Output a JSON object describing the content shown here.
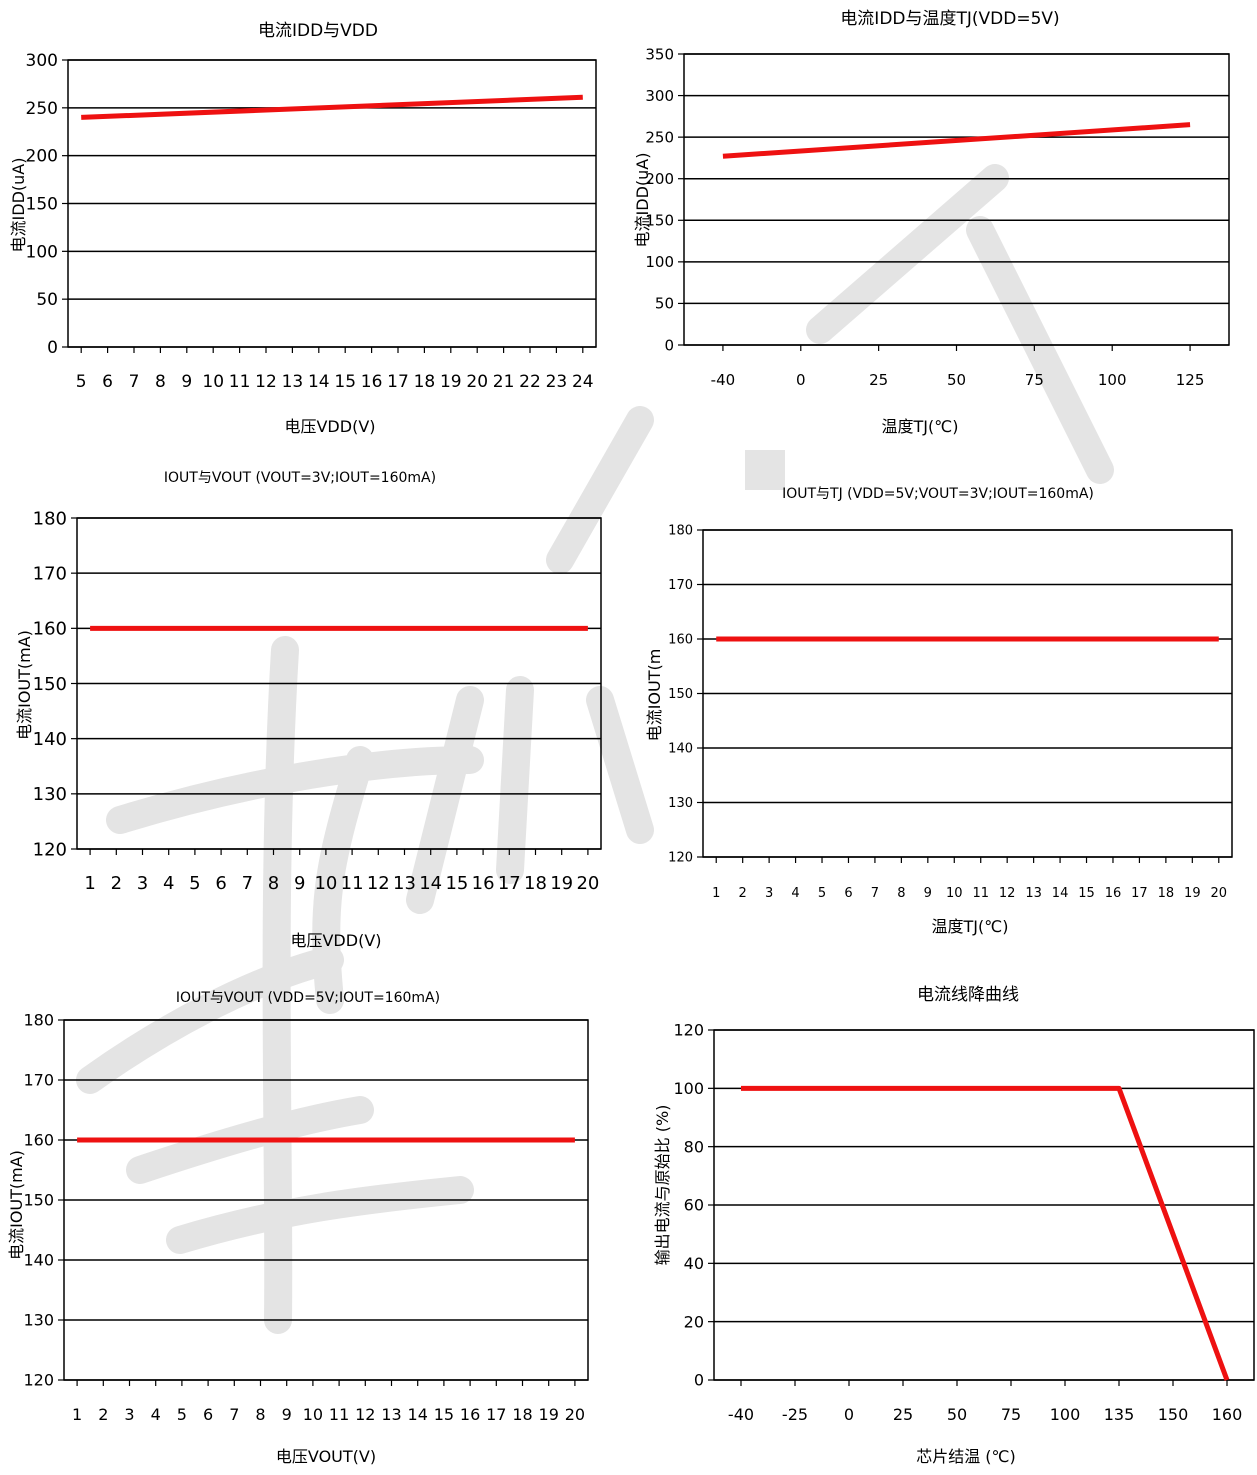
{
  "chart_data": [
    {
      "id": "c1",
      "type": "line",
      "title": "电流IDD与VDD",
      "xlabel": "电压VDD(V)",
      "ylabel": "电流IDD(uA)",
      "categories": [
        "5",
        "6",
        "7",
        "8",
        "9",
        "10",
        "11",
        "12",
        "13",
        "14",
        "15",
        "16",
        "17",
        "18",
        "19",
        "20",
        "21",
        "22",
        "23",
        "24"
      ],
      "ylim": [
        0,
        300
      ],
      "yticks": [
        0,
        50,
        100,
        150,
        200,
        250,
        300
      ],
      "series": [
        {
          "x": [
            5,
            24
          ],
          "y": [
            240,
            261
          ]
        }
      ]
    },
    {
      "id": "c2",
      "type": "line",
      "title": "电流IDD与温度TJ(VDD=5V)",
      "xlabel": "温度TJ(℃)",
      "ylabel": "电流IDD(uA)",
      "categories": [
        "-40",
        "0",
        "25",
        "50",
        "75",
        "100",
        "125"
      ],
      "ylim": [
        0,
        350
      ],
      "yticks": [
        0,
        50,
        100,
        150,
        200,
        250,
        300,
        350
      ],
      "series": [
        {
          "x": [
            -40,
            125
          ],
          "y": [
            227,
            265
          ]
        }
      ]
    },
    {
      "id": "c3",
      "type": "line",
      "title": "IOUT与VOUT (VOUT=3V;IOUT=160mA)",
      "xlabel": "电压VDD(V)",
      "ylabel": "电流IOUT(mA)",
      "categories": [
        "1",
        "2",
        "3",
        "4",
        "5",
        "6",
        "7",
        "8",
        "9",
        "10",
        "11",
        "12",
        "13",
        "14",
        "15",
        "16",
        "17",
        "18",
        "19",
        "20"
      ],
      "ylim": [
        120,
        180
      ],
      "yticks": [
        120,
        130,
        140,
        150,
        160,
        170,
        180
      ],
      "series": [
        {
          "x": [
            1,
            20
          ],
          "y": [
            160,
            160
          ]
        }
      ]
    },
    {
      "id": "c4",
      "type": "line",
      "title": "IOUT与TJ (VDD=5V;VOUT=3V;IOUT=160mA)",
      "xlabel": "温度TJ(℃)",
      "ylabel": "电流IOUT(m",
      "categories": [
        "1",
        "2",
        "3",
        "4",
        "5",
        "6",
        "7",
        "8",
        "9",
        "10",
        "11",
        "12",
        "13",
        "14",
        "15",
        "16",
        "17",
        "18",
        "19",
        "20"
      ],
      "ylim": [
        120,
        180
      ],
      "yticks": [
        120,
        130,
        140,
        150,
        160,
        170,
        180
      ],
      "series": [
        {
          "x": [
            1,
            20
          ],
          "y": [
            160,
            160
          ]
        }
      ]
    },
    {
      "id": "c5",
      "type": "line",
      "title": "IOUT与VOUT (VDD=5V;IOUT=160mA)",
      "xlabel": "电压VOUT(V)",
      "ylabel": "电流IOUT(mA)",
      "categories": [
        "1",
        "2",
        "3",
        "4",
        "5",
        "6",
        "7",
        "8",
        "9",
        "10",
        "11",
        "12",
        "13",
        "14",
        "15",
        "16",
        "17",
        "18",
        "19",
        "20"
      ],
      "ylim": [
        120,
        180
      ],
      "yticks": [
        120,
        130,
        140,
        150,
        160,
        170,
        180
      ],
      "series": [
        {
          "x": [
            1,
            20
          ],
          "y": [
            160,
            160
          ]
        }
      ]
    },
    {
      "id": "c6",
      "type": "line",
      "title": "电流线降曲线",
      "xlabel": "芯片结温 (℃)",
      "ylabel": "输出电流与原始比 (%)",
      "categories": [
        "-40",
        "-25",
        "0",
        "25",
        "50",
        "75",
        "100",
        "135",
        "150",
        "160"
      ],
      "ylim": [
        0,
        120
      ],
      "yticks": [
        0,
        20,
        40,
        60,
        80,
        100,
        120
      ],
      "series": [
        {
          "x": [
            "-40",
            "135",
            "160"
          ],
          "y": [
            100,
            100,
            0
          ]
        }
      ]
    }
  ],
  "colors": {
    "series": "#ee1111",
    "grid": "#000000",
    "watermark": "#e6e6e6"
  }
}
